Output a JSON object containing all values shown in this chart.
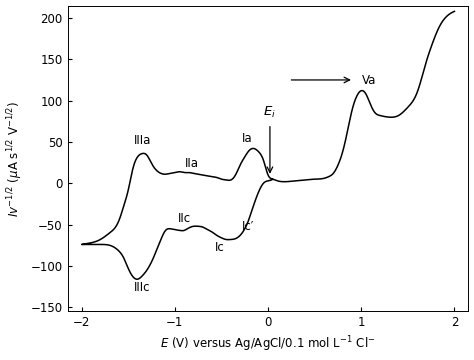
{
  "xlabel": "$E$ (V) versus Ag/AgCl/0.1 mol L$^{-1}$ Cl$^{-}$",
  "ylabel": "$Iv^{-1/2}$ ($\\mu$A s$^{1/2}$ V$^{-1/2}$)",
  "xlim": [
    -2.15,
    2.15
  ],
  "ylim": [
    -155,
    215
  ],
  "xticks": [
    -2,
    -1,
    0,
    1,
    2
  ],
  "yticks": [
    -150,
    -100,
    -50,
    0,
    50,
    100,
    150,
    200
  ],
  "background_color": "#ffffff",
  "line_color": "#000000",
  "cat_x": [
    0.05,
    0.0,
    -0.05,
    -0.1,
    -0.15,
    -0.2,
    -0.25,
    -0.3,
    -0.35,
    -0.4,
    -0.45,
    -0.5,
    -0.55,
    -0.6,
    -0.65,
    -0.7,
    -0.75,
    -0.8,
    -0.85,
    -0.9,
    -0.95,
    -1.0,
    -1.05,
    -1.1,
    -1.15,
    -1.2,
    -1.25,
    -1.3,
    -1.35,
    -1.4,
    -1.45,
    -1.5,
    -1.55,
    -1.6,
    -1.7,
    -1.8,
    -1.9,
    -2.0
  ],
  "cat_y": [
    5,
    3,
    0,
    -10,
    -25,
    -42,
    -55,
    -63,
    -67,
    -68,
    -68,
    -66,
    -63,
    -59,
    -56,
    -53,
    -52,
    -52,
    -54,
    -57,
    -57,
    -56,
    -55,
    -57,
    -68,
    -82,
    -95,
    -105,
    -112,
    -116,
    -113,
    -103,
    -90,
    -82,
    -75,
    -74,
    -74,
    -74
  ],
  "ano_x": [
    -2.0,
    -1.9,
    -1.8,
    -1.7,
    -1.6,
    -1.55,
    -1.5,
    -1.45,
    -1.4,
    -1.35,
    -1.3,
    -1.25,
    -1.2,
    -1.15,
    -1.1,
    -1.05,
    -1.0,
    -0.95,
    -0.9,
    -0.85,
    -0.8,
    -0.75,
    -0.7,
    -0.65,
    -0.6,
    -0.55,
    -0.5,
    -0.45,
    -0.4,
    -0.35,
    -0.3,
    -0.25,
    -0.2,
    -0.15,
    -0.1,
    -0.05,
    0.0,
    0.05,
    0.1,
    0.15,
    0.2,
    0.3,
    0.4,
    0.5,
    0.6,
    0.65,
    0.7,
    0.75,
    0.8,
    0.85,
    0.9,
    0.95,
    1.0,
    1.05,
    1.1,
    1.15,
    1.2,
    1.3,
    1.4,
    1.5,
    1.6,
    1.65,
    1.7,
    1.75,
    1.8,
    1.85,
    1.9,
    1.95,
    2.0
  ],
  "ano_y": [
    -74,
    -72,
    -68,
    -60,
    -45,
    -28,
    -8,
    18,
    32,
    36,
    34,
    24,
    16,
    12,
    11,
    12,
    13,
    14,
    13,
    13,
    12,
    11,
    10,
    9,
    8,
    7,
    5,
    4,
    4,
    10,
    22,
    32,
    40,
    42,
    38,
    28,
    10,
    5,
    3,
    2,
    2,
    3,
    4,
    5,
    6,
    8,
    12,
    22,
    38,
    62,
    88,
    105,
    112,
    108,
    95,
    85,
    82,
    80,
    82,
    92,
    110,
    128,
    148,
    165,
    180,
    192,
    200,
    205,
    208
  ]
}
